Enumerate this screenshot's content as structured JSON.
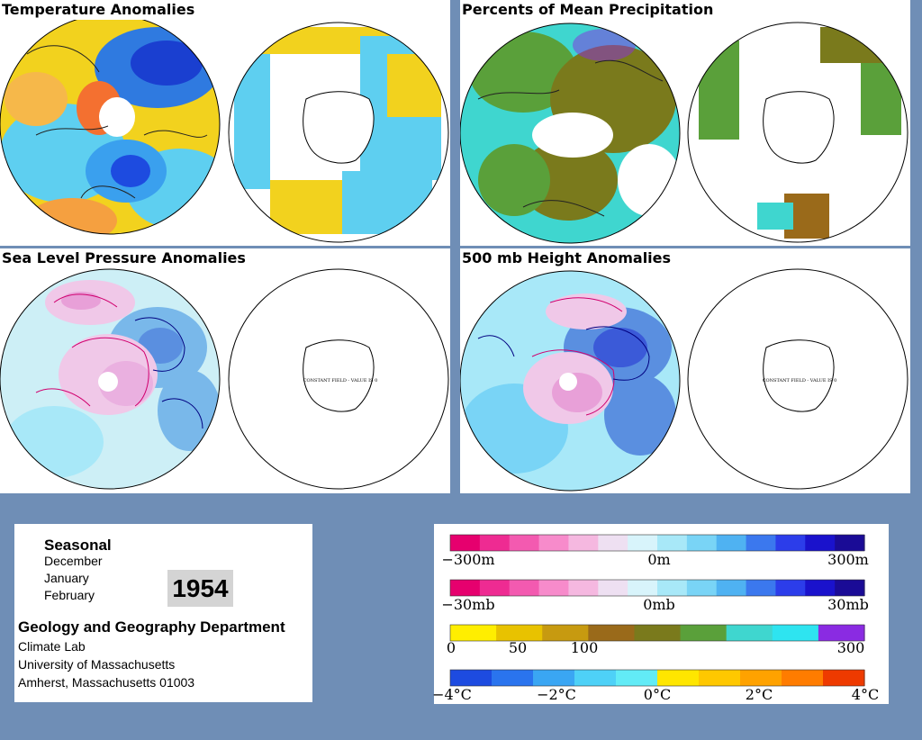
{
  "panels": [
    {
      "title": "Temperature Anomalies"
    },
    {
      "title": "Percents of Mean Precipitation"
    },
    {
      "title": "Sea Level Pressure Anomalies"
    },
    {
      "title": "500 mb Height Anomalies"
    }
  ],
  "constant_field_label": "CONSTANT FIELD - VALUE IS 0",
  "info": {
    "season_heading": "Seasonal",
    "months": [
      "December",
      "January",
      "February"
    ],
    "year": "1954",
    "department": "Geology and Geography Department",
    "lab": "Climate Lab",
    "university": "University of Massachusetts",
    "address": "Amherst, Massachusetts 01003"
  },
  "legend": {
    "height": {
      "ticks": [
        "−300m",
        "0m",
        "300m"
      ],
      "colors": [
        "#e6006e",
        "#ee2b92",
        "#f35ab0",
        "#f78bcb",
        "#f5b8e0",
        "#eee0f2",
        "#d8f4fb",
        "#a8e8f8",
        "#79d4f6",
        "#4fb2f2",
        "#3b78ee",
        "#2c3dea",
        "#1a12cc",
        "#1a0b96"
      ]
    },
    "pressure": {
      "ticks": [
        "−30mb",
        "0mb",
        "30mb"
      ],
      "colors": [
        "#e6006e",
        "#ee2b92",
        "#f35ab0",
        "#f78bcb",
        "#f5b8e0",
        "#eee0f2",
        "#d8f4fb",
        "#a8e8f8",
        "#79d4f6",
        "#4fb2f2",
        "#3b78ee",
        "#2c3dea",
        "#1a12cc",
        "#1a0b96"
      ]
    },
    "precip": {
      "ticks": [
        "0",
        "50",
        "100",
        "300"
      ],
      "colors": [
        "#ffee00",
        "#e8c200",
        "#c79a10",
        "#9a6a1a",
        "#7a7a1c",
        "#5aa03a",
        "#3fd6cf",
        "#2ee4f0",
        "#8a2be2"
      ]
    },
    "temperature": {
      "ticks": [
        "−4°C",
        "−2°C",
        "0°C",
        "2°C",
        "4°C"
      ],
      "colors": [
        "#1d4be0",
        "#2a74ee",
        "#3aa6f3",
        "#4ed1f7",
        "#62ebf6",
        "#ffe600",
        "#ffc800",
        "#ffa200",
        "#ff7c00",
        "#ee3a00"
      ]
    }
  }
}
